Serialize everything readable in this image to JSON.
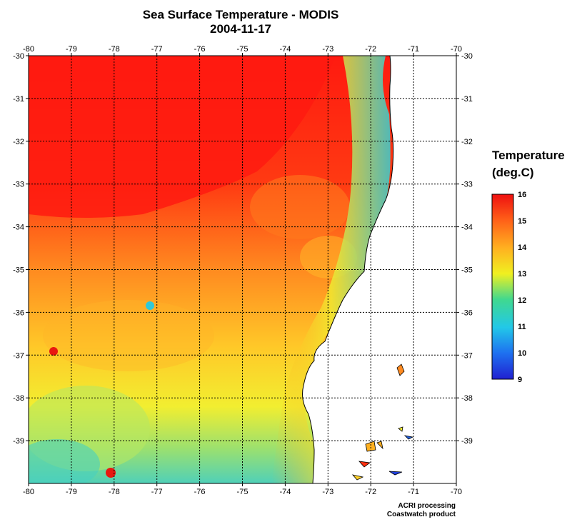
{
  "title": "Sea Surface Temperature - MODIS",
  "date": "2004-11-17",
  "map": {
    "lon_range": [
      -80,
      -70
    ],
    "lat_range": [
      -40,
      -30
    ],
    "lon_ticks": [
      "-80",
      "-79",
      "-78",
      "-77",
      "-76",
      "-75",
      "-74",
      "-73",
      "-72",
      "-71",
      "-70"
    ],
    "lat_ticks": [
      "-30",
      "-31",
      "-32",
      "-33",
      "-34",
      "-35",
      "-36",
      "-37",
      "-38",
      "-39"
    ],
    "grid": "dotted",
    "land_color": "#ffffff",
    "coastline_color": "#000000"
  },
  "legend": {
    "title_line1": "Temperature",
    "title_line2": "(deg.C)",
    "min": 9,
    "max": 16,
    "labels": [
      "16",
      "15",
      "14",
      "13",
      "12",
      "11",
      "10",
      "9"
    ],
    "colors": [
      "#2020d0",
      "#1e90ff",
      "#22c8e8",
      "#40d8a0",
      "#a8e040",
      "#f8f020",
      "#ffc020",
      "#ff8020",
      "#ff3010",
      "#ee1010"
    ]
  },
  "credits": {
    "line1": "ACRI processing",
    "line2": "Coastwatch product"
  }
}
